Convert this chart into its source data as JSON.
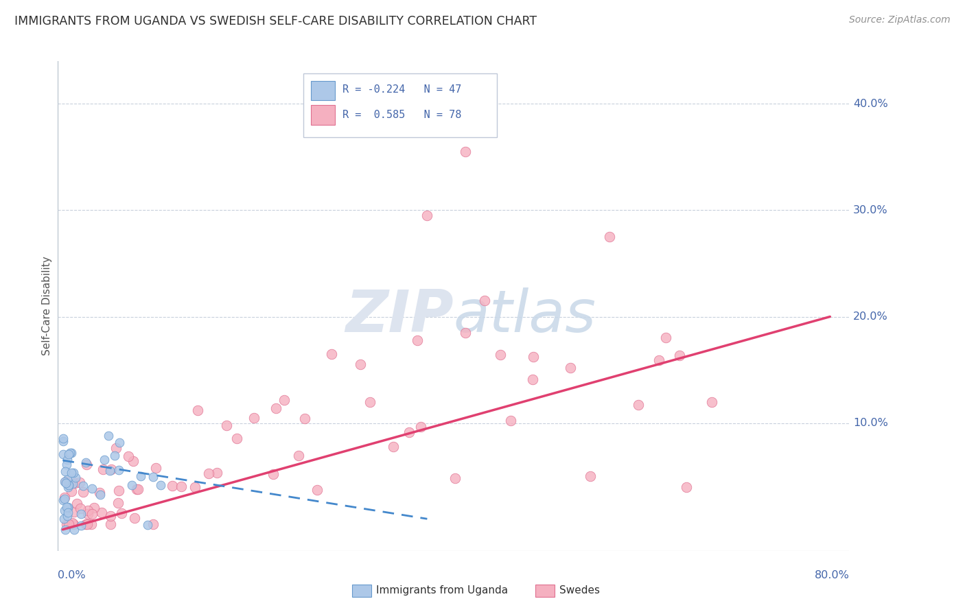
{
  "title": "IMMIGRANTS FROM UGANDA VS SWEDISH SELF-CARE DISABILITY CORRELATION CHART",
  "source": "Source: ZipAtlas.com",
  "ylabel": "Self-Care Disability",
  "ytick_labels": [
    "10.0%",
    "20.0%",
    "30.0%",
    "40.0%"
  ],
  "ytick_vals": [
    0.1,
    0.2,
    0.3,
    0.4
  ],
  "xlim": [
    -0.005,
    0.82
  ],
  "ylim": [
    -0.02,
    0.44
  ],
  "blue_color": "#adc8e8",
  "blue_edge_color": "#6699cc",
  "pink_color": "#f5b0c0",
  "pink_edge_color": "#e07090",
  "blue_line_color": "#4488cc",
  "pink_line_color": "#e04070",
  "title_color": "#303030",
  "source_color": "#909090",
  "axis_label_color": "#4466aa",
  "grid_color": "#c8d0dc",
  "watermark_color": "#dde4ef",
  "blue_line_x0": 0.0,
  "blue_line_x1": 0.38,
  "blue_line_y0": 0.065,
  "blue_line_y1": 0.01,
  "pink_line_x0": 0.0,
  "pink_line_x1": 0.8,
  "pink_line_y0": 0.0,
  "pink_line_y1": 0.2
}
